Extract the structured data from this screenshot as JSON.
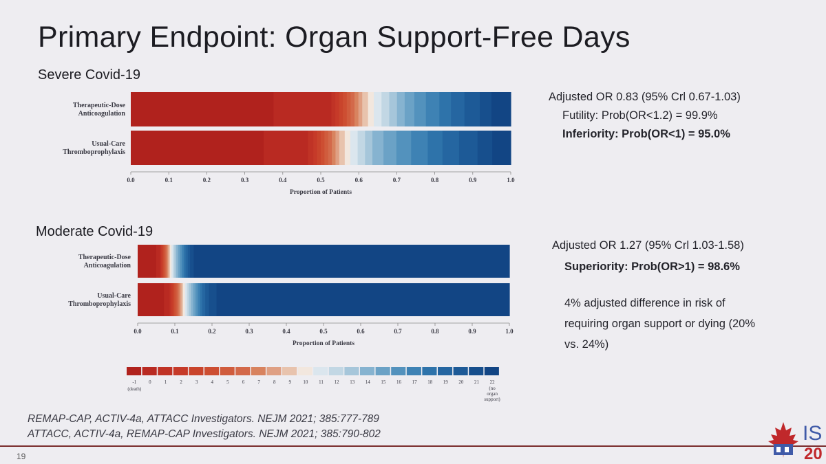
{
  "slide": {
    "title": "Primary Endpoint: Organ Support-Free Days",
    "page_number": "19",
    "logo_text": "IS",
    "logo_year": "20"
  },
  "sections": {
    "severe": {
      "label": "Severe Covid-19",
      "stats": {
        "adjusted_or": "Adjusted OR 0.83 (95% Crl 0.67-1.03)",
        "futility": "Futility: Prob(OR<1.2) = 99.9%",
        "inferiority": "Inferiority: Prob(OR<1) = 95.0%"
      }
    },
    "moderate": {
      "label": "Moderate Covid-19",
      "stats": {
        "adjusted_or": "Adjusted OR 1.27 (95% Crl 1.03-1.58)",
        "superiority": "Superiority: Prob(OR>1) = 98.6%",
        "difference_line1": "4% adjusted difference in risk of",
        "difference_line2": "requiring organ support or dying (20%",
        "difference_line3": "vs. 24%)"
      }
    }
  },
  "references": [
    "REMAP-CAP, ACTIV-4a, ATTACC Investigators. NEJM 2021; 385:777-789",
    "ATTACC, ACTIV-4a, REMAP-CAP Investigators. NEJM 2021; 385:790-802"
  ],
  "legend": {
    "categories": [
      "-1",
      "0",
      "1",
      "2",
      "3",
      "4",
      "5",
      "6",
      "7",
      "8",
      "9",
      "10",
      "11",
      "12",
      "13",
      "14",
      "15",
      "16",
      "17",
      "18",
      "19",
      "20",
      "21",
      "22"
    ],
    "first_note": "(death)",
    "last_note_line1": "(no",
    "last_note_line2": "organ",
    "last_note_line3": "support)"
  },
  "colors": {
    "scale": [
      "#b0221d",
      "#b92a22",
      "#c03326",
      "#c63a29",
      "#c9442c",
      "#cd4e32",
      "#d05c3d",
      "#d3694a",
      "#d8835f",
      "#dfa084",
      "#e8c3ad",
      "#f2e7de",
      "#dbe6ee",
      "#c2d7e4",
      "#a6c6da",
      "#86b3d0",
      "#6ba2c6",
      "#5392bd",
      "#3e82b4",
      "#2e73aa",
      "#2566a1",
      "#1d5a97",
      "#174f8d",
      "#124584"
    ]
  },
  "chart_data": [
    {
      "type": "bar",
      "subtype": "stacked-proportion",
      "title": "Severe Covid-19",
      "xlabel": "Proportion of Patients",
      "xlim": [
        0,
        1
      ],
      "xticks": [
        "0.0",
        "0.1",
        "0.2",
        "0.3",
        "0.4",
        "0.5",
        "0.6",
        "0.7",
        "0.8",
        "0.9",
        "1.0"
      ],
      "categories": [
        "-1",
        "0",
        "1",
        "2",
        "3",
        "4",
        "5",
        "6",
        "7",
        "8",
        "9",
        "10",
        "11",
        "12",
        "13",
        "14",
        "15",
        "16",
        "17",
        "18",
        "19",
        "20",
        "21",
        "22"
      ],
      "series": [
        {
          "name": "Therapeutic-Dose Anticoagulation",
          "label_line1": "Therapeutic-Dose",
          "label_line2": "Anticoagulation",
          "values": [
            0.37,
            0.15,
            0.01,
            0.01,
            0.01,
            0.01,
            0.01,
            0.01,
            0.01,
            0.01,
            0.015,
            0.015,
            0.02,
            0.02,
            0.02,
            0.02,
            0.025,
            0.03,
            0.035,
            0.03,
            0.035,
            0.04,
            0.03,
            0.05
          ]
        },
        {
          "name": "Usual-Care Thromboprophylaxis",
          "label_line1": "Usual-Care",
          "label_line2": "Thromboprophylaxis",
          "values": [
            0.36,
            0.12,
            0.015,
            0.01,
            0.01,
            0.01,
            0.01,
            0.01,
            0.01,
            0.01,
            0.015,
            0.015,
            0.02,
            0.02,
            0.02,
            0.03,
            0.035,
            0.04,
            0.045,
            0.04,
            0.045,
            0.05,
            0.04,
            0.05
          ]
        }
      ]
    },
    {
      "type": "bar",
      "subtype": "stacked-proportion",
      "title": "Moderate Covid-19",
      "xlabel": "Proportion of Patients",
      "xlim": [
        0,
        1
      ],
      "xticks": [
        "0.0",
        "0.1",
        "0.2",
        "0.3",
        "0.4",
        "0.5",
        "0.6",
        "0.7",
        "0.8",
        "0.9",
        "1.0"
      ],
      "categories": [
        "-1",
        "0",
        "1",
        "2",
        "3",
        "4",
        "5",
        "6",
        "7",
        "8",
        "9",
        "10",
        "11",
        "12",
        "13",
        "14",
        "15",
        "16",
        "17",
        "18",
        "19",
        "20",
        "21",
        "22"
      ],
      "series": [
        {
          "name": "Therapeutic-Dose Anticoagulation",
          "label_line1": "Therapeutic-Dose",
          "label_line2": "Anticoagulation",
          "values": [
            0.05,
            0.01,
            0.003,
            0.003,
            0.003,
            0.003,
            0.003,
            0.003,
            0.003,
            0.003,
            0.003,
            0.004,
            0.004,
            0.004,
            0.005,
            0.005,
            0.005,
            0.005,
            0.005,
            0.005,
            0.006,
            0.006,
            0.01,
            0.85
          ]
        },
        {
          "name": "Usual-Care Thromboprophylaxis",
          "label_line1": "Usual-Care",
          "label_line2": "Thromboprophylaxis",
          "values": [
            0.07,
            0.015,
            0.004,
            0.004,
            0.004,
            0.004,
            0.004,
            0.004,
            0.004,
            0.004,
            0.004,
            0.005,
            0.005,
            0.005,
            0.006,
            0.006,
            0.006,
            0.006,
            0.006,
            0.006,
            0.008,
            0.01,
            0.02,
            0.78
          ]
        }
      ]
    }
  ]
}
